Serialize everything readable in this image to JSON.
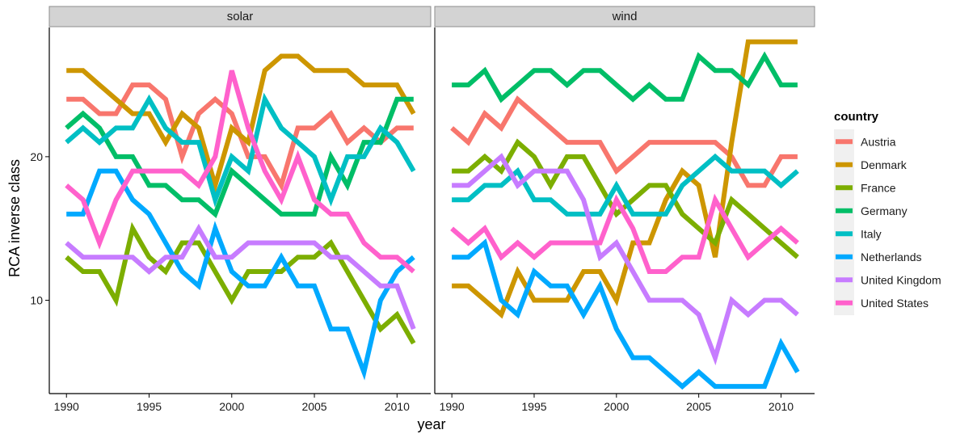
{
  "chart_data": {
    "type": "line",
    "title": "",
    "xlabel": "year",
    "ylabel": "RCA inverse class",
    "xlim": [
      1990,
      2011
    ],
    "ylim": [
      3.5,
      29
    ],
    "x_ticks": [
      1990,
      1995,
      2000,
      2005,
      2010
    ],
    "y_ticks": [
      10,
      20
    ],
    "grid": false,
    "legend": {
      "title": "country",
      "position": "right"
    },
    "x": [
      1990,
      1991,
      1992,
      1993,
      1994,
      1995,
      1996,
      1997,
      1998,
      1999,
      2000,
      2001,
      2002,
      2003,
      2004,
      2005,
      2006,
      2007,
      2008,
      2009,
      2010,
      2011
    ],
    "panels": [
      {
        "name": "solar",
        "series": [
          {
            "name": "Austria",
            "color": "#F8766D",
            "values": [
              24,
              24,
              23,
              23,
              25,
              25,
              24,
              20,
              23,
              24,
              23,
              20,
              20,
              18,
              22,
              22,
              23,
              21,
              22,
              21,
              22,
              22
            ]
          },
          {
            "name": "Denmark",
            "color": "#CD9600",
            "values": [
              26,
              26,
              25,
              24,
              23,
              23,
              21,
              23,
              22,
              18,
              22,
              21,
              26,
              27,
              27,
              26,
              26,
              26,
              25,
              25,
              25,
              23
            ]
          },
          {
            "name": "France",
            "color": "#7CAE00",
            "values": [
              13,
              12,
              12,
              10,
              15,
              13,
              12,
              14,
              14,
              12,
              10,
              12,
              12,
              12,
              13,
              13,
              14,
              12,
              10,
              8,
              9,
              7
            ]
          },
          {
            "name": "Germany",
            "color": "#00BE67",
            "values": [
              22,
              23,
              22,
              20,
              20,
              18,
              18,
              17,
              17,
              16,
              19,
              18,
              17,
              16,
              16,
              16,
              20,
              18,
              21,
              21,
              24,
              24
            ]
          },
          {
            "name": "Italy",
            "color": "#00BFC4",
            "values": [
              21,
              22,
              21,
              22,
              22,
              24,
              22,
              21,
              21,
              17,
              20,
              19,
              24,
              22,
              21,
              20,
              17,
              20,
              20,
              22,
              21,
              19
            ]
          },
          {
            "name": "Netherlands",
            "color": "#00A9FF",
            "values": [
              16,
              16,
              19,
              19,
              17,
              16,
              14,
              12,
              11,
              15,
              12,
              11,
              11,
              13,
              11,
              11,
              8,
              8,
              5,
              10,
              12,
              13
            ]
          },
          {
            "name": "United Kingdom",
            "color": "#C77CFF",
            "values": [
              14,
              13,
              13,
              13,
              13,
              12,
              13,
              13,
              15,
              13,
              13,
              14,
              14,
              14,
              14,
              14,
              13,
              13,
              12,
              11,
              11,
              8
            ]
          },
          {
            "name": "United States",
            "color": "#FF61CC",
            "values": [
              18,
              17,
              14,
              17,
              19,
              19,
              19,
              19,
              18,
              20,
              26,
              22,
              19,
              17,
              20,
              17,
              16,
              16,
              14,
              13,
              13,
              12
            ]
          }
        ]
      },
      {
        "name": "wind",
        "series": [
          {
            "name": "Austria",
            "color": "#F8766D",
            "values": [
              22,
              21,
              23,
              22,
              24,
              23,
              22,
              21,
              21,
              21,
              19,
              20,
              21,
              21,
              21,
              21,
              21,
              20,
              18,
              18,
              20,
              20
            ]
          },
          {
            "name": "Denmark",
            "color": "#CD9600",
            "values": [
              11,
              11,
              10,
              9,
              12,
              10,
              10,
              10,
              12,
              12,
              10,
              14,
              14,
              17,
              19,
              18,
              13,
              21,
              28,
              28,
              28,
              28
            ]
          },
          {
            "name": "France",
            "color": "#7CAE00",
            "values": [
              19,
              19,
              20,
              19,
              21,
              20,
              18,
              20,
              20,
              18,
              16,
              17,
              18,
              18,
              16,
              15,
              14,
              17,
              16,
              15,
              14,
              13
            ]
          },
          {
            "name": "Germany",
            "color": "#00BE67",
            "values": [
              25,
              25,
              26,
              24,
              25,
              26,
              26,
              25,
              26,
              26,
              25,
              24,
              25,
              24,
              24,
              27,
              26,
              26,
              25,
              27,
              25,
              25
            ]
          },
          {
            "name": "Italy",
            "color": "#00BFC4",
            "values": [
              17,
              17,
              18,
              18,
              19,
              17,
              17,
              16,
              16,
              16,
              18,
              16,
              16,
              16,
              18,
              19,
              20,
              19,
              19,
              19,
              18,
              19
            ]
          },
          {
            "name": "Netherlands",
            "color": "#00A9FF",
            "values": [
              13,
              13,
              14,
              10,
              9,
              12,
              11,
              11,
              9,
              11,
              8,
              6,
              6,
              5,
              4,
              5,
              4,
              4,
              4,
              4,
              7,
              5
            ]
          },
          {
            "name": "United Kingdom",
            "color": "#C77CFF",
            "values": [
              18,
              18,
              19,
              20,
              18,
              19,
              19,
              19,
              17,
              13,
              14,
              12,
              10,
              10,
              10,
              9,
              6,
              10,
              9,
              10,
              10,
              9
            ]
          },
          {
            "name": "United States",
            "color": "#FF61CC",
            "values": [
              15,
              14,
              15,
              13,
              14,
              13,
              14,
              14,
              14,
              14,
              17,
              15,
              12,
              12,
              13,
              13,
              17,
              15,
              13,
              14,
              15,
              14
            ]
          }
        ]
      }
    ]
  }
}
